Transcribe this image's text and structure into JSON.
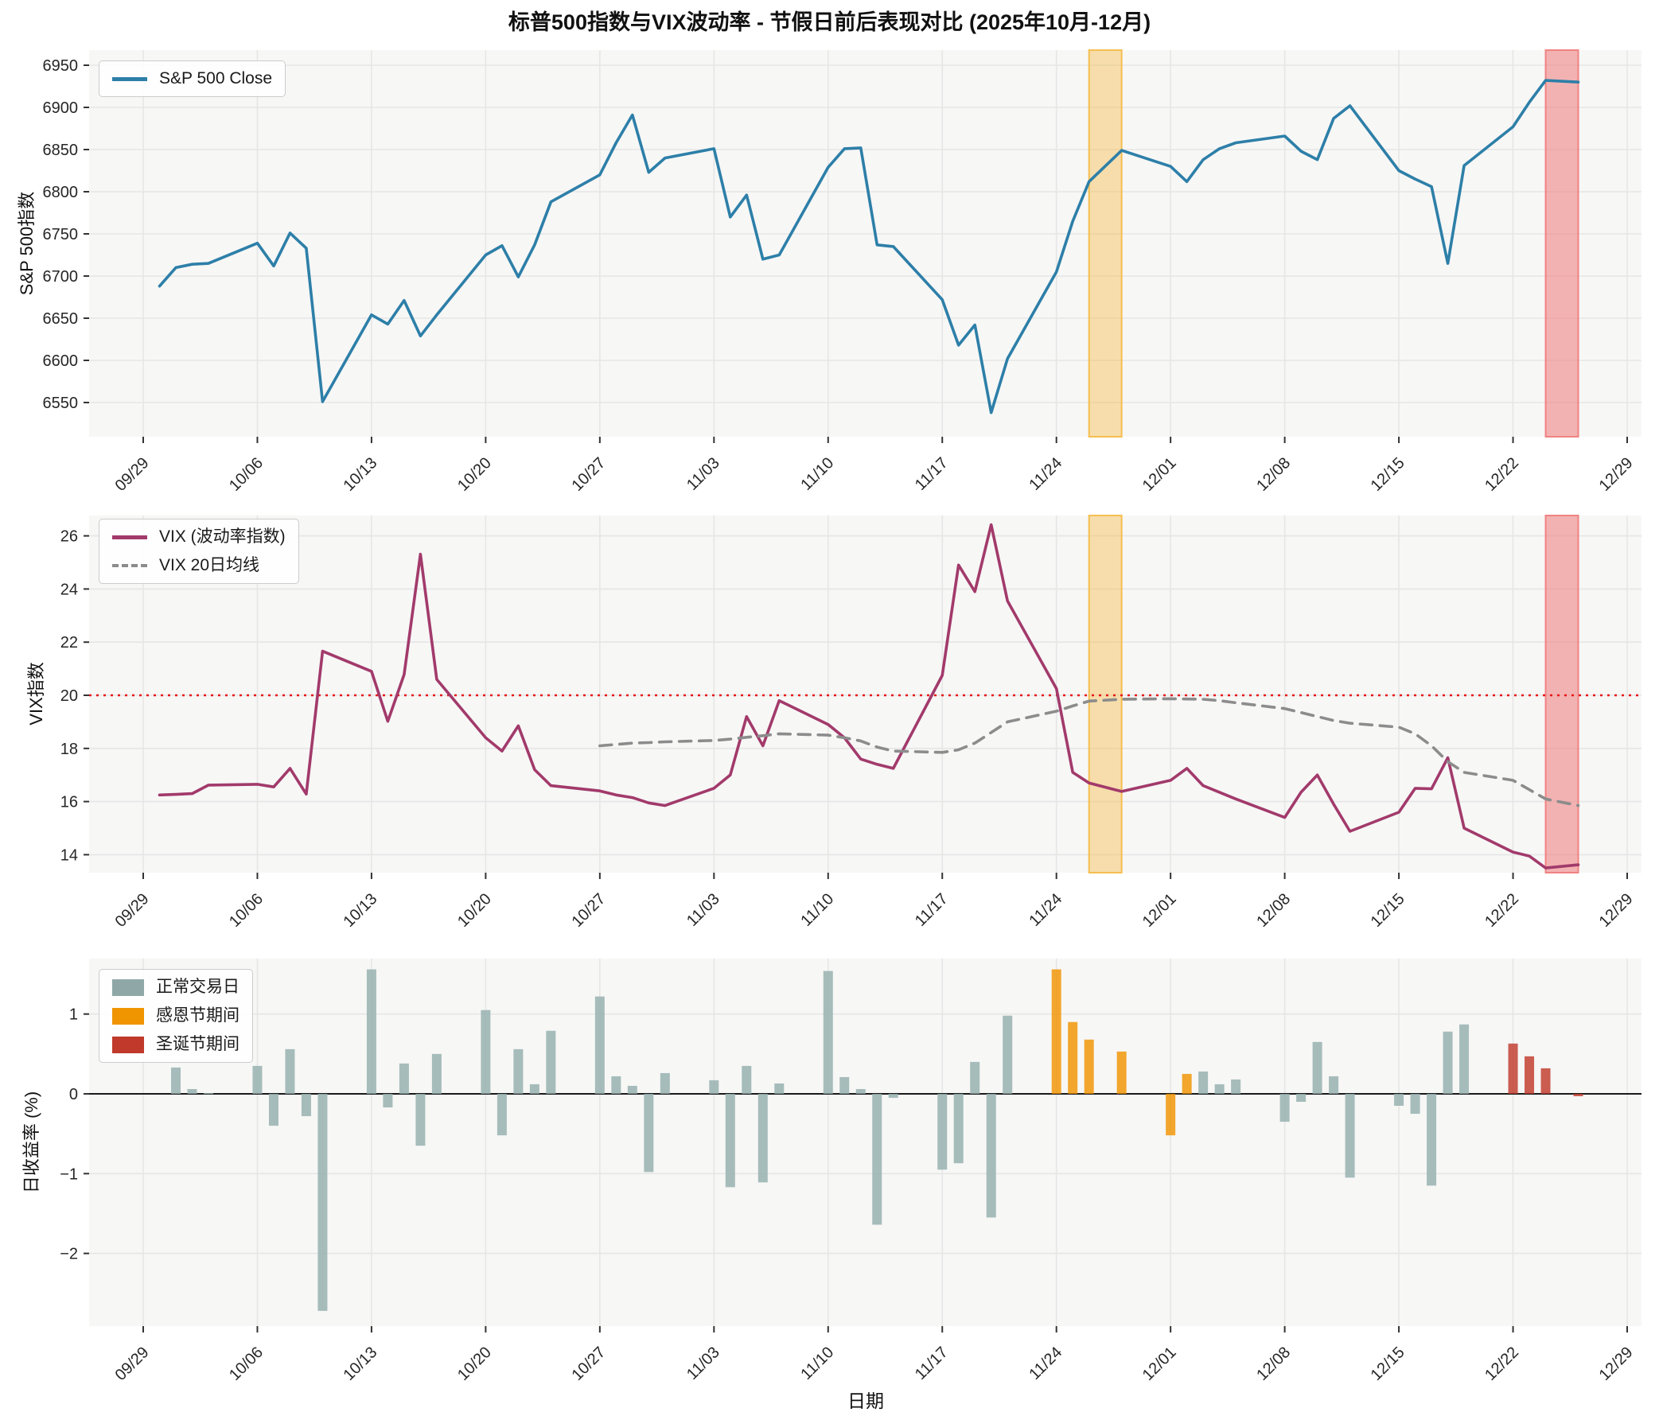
{
  "title": "标普500指数与VIX波动率 - 节假日前后表现对比 (2025年10月-12月)",
  "axes": {
    "price_ylabel": "S&P 500指数",
    "vix_ylabel": "VIX指数",
    "returns_ylabel": "日收益率 (%)",
    "xlabel": "日期"
  },
  "legends": {
    "price": "S&P 500 Close",
    "vix_line": "VIX (波动率指数)",
    "vix_ma": "VIX 20日均线",
    "ret_normal": "正常交易日",
    "ret_thanksgiving": "感恩节期间",
    "ret_christmas": "圣诞节期间"
  },
  "colors": {
    "sp500": "#2d7fa8",
    "vix": "#a23a6b",
    "vix_ma": "#8c8c8c",
    "threshold": "#e81416",
    "bar_normal": "#97b1af",
    "bar_thanksgiving": "#f09400",
    "bar_christmas": "#c0392b",
    "band_thanksgiving": "#f5b942",
    "band_christmas": "#f07a7a",
    "plot_bg": "#f7f7f6",
    "grid": "#e6e6e6",
    "tick_text": "#262626"
  },
  "x_ticks": [
    "09/29",
    "10/06",
    "10/13",
    "10/20",
    "10/27",
    "11/03",
    "11/10",
    "11/17",
    "11/24",
    "12/01",
    "12/08",
    "12/15",
    "12/22",
    "12/29"
  ],
  "bands": [
    {
      "type": "thanksgiving",
      "from": "11/26",
      "to": "11/28"
    },
    {
      "type": "christmas",
      "from": "12/24",
      "to": "12/26"
    }
  ],
  "chart_data": [
    {
      "type": "line",
      "name": "sp500_close",
      "title": "S&P 500 Close",
      "ylabel": "S&P 500指数",
      "yticks": [
        6550,
        6600,
        6650,
        6700,
        6750,
        6800,
        6850,
        6900,
        6950
      ],
      "ylim": [
        6509,
        6968
      ],
      "legend_position": "upper-left",
      "grid": true,
      "x": [
        "09/30",
        "10/01",
        "10/02",
        "10/03",
        "10/06",
        "10/07",
        "10/08",
        "10/09",
        "10/10",
        "10/13",
        "10/14",
        "10/15",
        "10/16",
        "10/17",
        "10/20",
        "10/21",
        "10/22",
        "10/23",
        "10/24",
        "10/27",
        "10/28",
        "10/29",
        "10/30",
        "10/31",
        "11/03",
        "11/04",
        "11/05",
        "11/06",
        "11/07",
        "11/10",
        "11/11",
        "11/12",
        "11/13",
        "11/14",
        "11/17",
        "11/18",
        "11/19",
        "11/20",
        "11/21",
        "11/24",
        "11/25",
        "11/26",
        "11/28",
        "12/01",
        "12/02",
        "12/03",
        "12/04",
        "12/05",
        "12/08",
        "12/09",
        "12/10",
        "12/11",
        "12/12",
        "12/15",
        "12/16",
        "12/17",
        "12/18",
        "12/19",
        "12/22",
        "12/23",
        "12/24",
        "12/26"
      ],
      "values": [
        6688,
        6710,
        6714,
        6715,
        6739,
        6712,
        6751,
        6733,
        6551,
        6654,
        6643,
        6671,
        6629,
        6654,
        6725,
        6736,
        6699,
        6737,
        6788,
        6820,
        6858,
        6891,
        6823,
        6840,
        6851,
        6770,
        6796,
        6720,
        6725,
        6829,
        6851,
        6852,
        6737,
        6735,
        6672,
        6618,
        6642,
        6538,
        6602,
        6705,
        6765,
        6812,
        6849,
        6830,
        6812,
        6838,
        6851,
        6858,
        6866,
        6848,
        6838,
        6887,
        6902,
        6825,
        6815,
        6806,
        6715,
        6831,
        6877,
        6906,
        6932,
        6930
      ]
    },
    {
      "type": "line",
      "name": "vix",
      "ylabel": "VIX指数",
      "yticks": [
        14,
        16,
        18,
        20,
        22,
        24,
        26
      ],
      "ylim": [
        13.3,
        26.9
      ],
      "threshold": 20,
      "legend_position": "upper-left",
      "grid": true,
      "x": [
        "09/30",
        "10/01",
        "10/02",
        "10/03",
        "10/06",
        "10/07",
        "10/08",
        "10/09",
        "10/10",
        "10/13",
        "10/14",
        "10/15",
        "10/16",
        "10/17",
        "10/20",
        "10/21",
        "10/22",
        "10/23",
        "10/24",
        "10/27",
        "10/28",
        "10/29",
        "10/30",
        "10/31",
        "11/03",
        "11/04",
        "11/05",
        "11/06",
        "11/07",
        "11/10",
        "11/11",
        "11/12",
        "11/13",
        "11/14",
        "11/17",
        "11/18",
        "11/19",
        "11/20",
        "11/21",
        "11/24",
        "11/25",
        "11/26",
        "11/28",
        "12/01",
        "12/02",
        "12/03",
        "12/04",
        "12/05",
        "12/08",
        "12/09",
        "12/10",
        "12/11",
        "12/12",
        "12/15",
        "12/16",
        "12/17",
        "12/18",
        "12/19",
        "12/22",
        "12/23",
        "12/24",
        "12/26"
      ],
      "series": [
        {
          "name": "VIX (波动率指数)",
          "style": "solid",
          "values": [
            16.25,
            16.27,
            16.3,
            16.62,
            16.65,
            16.55,
            17.25,
            16.28,
            21.66,
            20.9,
            19.02,
            20.78,
            25.31,
            20.6,
            18.4,
            17.9,
            18.85,
            17.2,
            16.6,
            16.4,
            16.25,
            16.15,
            15.95,
            15.85,
            16.5,
            17.0,
            19.2,
            18.1,
            19.8,
            18.9,
            18.4,
            17.6,
            17.4,
            17.25,
            20.75,
            24.9,
            23.9,
            26.42,
            23.55,
            20.25,
            17.1,
            16.7,
            16.38,
            16.8,
            17.25,
            16.6,
            16.35,
            16.1,
            15.4,
            16.35,
            17.0,
            15.9,
            14.88,
            15.6,
            16.5,
            16.48,
            17.65,
            15.0,
            14.1,
            13.95,
            13.5,
            13.62
          ]
        },
        {
          "name": "VIX 20日均线",
          "style": "dashed",
          "values": [
            null,
            null,
            null,
            null,
            null,
            null,
            null,
            null,
            null,
            null,
            null,
            null,
            null,
            null,
            null,
            null,
            null,
            null,
            null,
            18.1,
            18.15,
            18.2,
            18.22,
            18.25,
            18.3,
            18.35,
            18.42,
            18.48,
            18.55,
            18.5,
            18.4,
            18.28,
            18.05,
            17.9,
            17.85,
            17.95,
            18.2,
            18.6,
            19.0,
            19.4,
            19.6,
            19.78,
            19.85,
            19.87,
            19.86,
            19.85,
            19.8,
            19.72,
            19.5,
            19.35,
            19.2,
            19.05,
            18.95,
            18.8,
            18.55,
            18.1,
            17.5,
            17.1,
            16.8,
            16.45,
            16.1,
            15.85
          ]
        }
      ]
    },
    {
      "type": "bar",
      "name": "daily_returns",
      "ylabel": "日收益率 (%)",
      "xlabel": "日期",
      "yticks": [
        -2,
        -1,
        0,
        1
      ],
      "ylim": [
        -2.92,
        1.7
      ],
      "legend_position": "upper-left",
      "grid": true,
      "x": [
        "10/01",
        "10/02",
        "10/03",
        "10/06",
        "10/07",
        "10/08",
        "10/09",
        "10/10",
        "10/13",
        "10/14",
        "10/15",
        "10/16",
        "10/17",
        "10/20",
        "10/21",
        "10/22",
        "10/23",
        "10/24",
        "10/27",
        "10/28",
        "10/29",
        "10/30",
        "10/31",
        "11/03",
        "11/04",
        "11/05",
        "11/06",
        "11/07",
        "11/10",
        "11/11",
        "11/12",
        "11/13",
        "11/14",
        "11/17",
        "11/18",
        "11/19",
        "11/20",
        "11/21",
        "11/24",
        "11/25",
        "11/26",
        "11/28",
        "12/01",
        "12/02",
        "12/03",
        "12/04",
        "12/05",
        "12/08",
        "12/09",
        "12/10",
        "12/11",
        "12/12",
        "12/15",
        "12/16",
        "12/17",
        "12/18",
        "12/19",
        "12/22",
        "12/23",
        "12/24",
        "12/26"
      ],
      "values": [
        0.33,
        0.06,
        0.01,
        0.35,
        -0.4,
        0.56,
        -0.28,
        -2.72,
        1.56,
        -0.17,
        0.38,
        -0.65,
        0.5,
        1.05,
        -0.52,
        0.56,
        0.12,
        0.79,
        1.22,
        0.22,
        0.1,
        -0.98,
        0.26,
        0.17,
        -1.17,
        0.35,
        -1.11,
        0.13,
        1.54,
        0.21,
        0.06,
        -1.64,
        -0.05,
        -0.95,
        -0.87,
        0.4,
        -1.55,
        0.98,
        1.56,
        0.9,
        0.68,
        0.53,
        -0.52,
        0.25,
        0.28,
        0.12,
        0.18,
        -0.35,
        -0.1,
        0.65,
        0.22,
        -1.05,
        -0.15,
        -0.25,
        -1.15,
        0.78,
        0.87,
        0.63,
        0.47,
        0.32,
        -0.03
      ],
      "groups": {
        "thanksgiving": [
          "11/24",
          "11/25",
          "11/26",
          "11/28",
          "12/01",
          "12/02"
        ],
        "christmas": [
          "12/22",
          "12/23",
          "12/24",
          "12/26"
        ]
      }
    }
  ]
}
